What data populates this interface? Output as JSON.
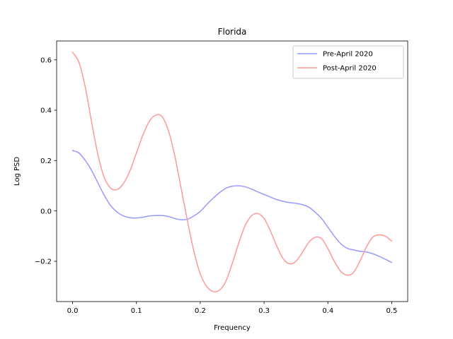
{
  "chart_data": {
    "type": "line",
    "title": "Florida",
    "xlabel": "Frequency",
    "ylabel": "Log PSD",
    "xlim": [
      -0.025,
      0.525
    ],
    "ylim": [
      -0.36,
      0.675
    ],
    "x_ticks": [
      0.0,
      0.1,
      0.2,
      0.3,
      0.4,
      0.5
    ],
    "x_tick_labels": [
      "0.0",
      "0.1",
      "0.2",
      "0.3",
      "0.4",
      "0.5"
    ],
    "y_ticks": [
      -0.2,
      0.0,
      0.2,
      0.4,
      0.6
    ],
    "y_tick_labels": [
      "−0.2",
      "0.0",
      "0.2",
      "0.4",
      "0.6"
    ],
    "grid": false,
    "legend_position": "upper right",
    "series": [
      {
        "name": "Pre-April 2020",
        "color": "#9999ff",
        "x": [
          0.0,
          0.01,
          0.02,
          0.03,
          0.04,
          0.05,
          0.06,
          0.07,
          0.08,
          0.09,
          0.1,
          0.11,
          0.12,
          0.13,
          0.14,
          0.15,
          0.16,
          0.17,
          0.18,
          0.19,
          0.2,
          0.21,
          0.22,
          0.23,
          0.24,
          0.25,
          0.26,
          0.27,
          0.28,
          0.29,
          0.3,
          0.31,
          0.32,
          0.33,
          0.34,
          0.35,
          0.36,
          0.37,
          0.38,
          0.39,
          0.4,
          0.41,
          0.42,
          0.43,
          0.44,
          0.45,
          0.46,
          0.47,
          0.48,
          0.49,
          0.5
        ],
        "y": [
          0.24,
          0.23,
          0.2,
          0.16,
          0.11,
          0.06,
          0.02,
          -0.005,
          -0.02,
          -0.027,
          -0.028,
          -0.025,
          -0.02,
          -0.018,
          -0.018,
          -0.022,
          -0.03,
          -0.035,
          -0.033,
          -0.02,
          -0.002,
          0.025,
          0.05,
          0.072,
          0.09,
          0.098,
          0.1,
          0.096,
          0.087,
          0.076,
          0.065,
          0.055,
          0.045,
          0.038,
          0.033,
          0.03,
          0.025,
          0.015,
          -0.005,
          -0.03,
          -0.065,
          -0.1,
          -0.13,
          -0.148,
          -0.155,
          -0.16,
          -0.163,
          -0.17,
          -0.18,
          -0.192,
          -0.205
        ]
      },
      {
        "name": "Post-April 2020",
        "color": "#ff9999",
        "x": [
          0.0,
          0.01,
          0.02,
          0.03,
          0.04,
          0.05,
          0.06,
          0.07,
          0.08,
          0.09,
          0.1,
          0.11,
          0.12,
          0.13,
          0.14,
          0.15,
          0.16,
          0.17,
          0.18,
          0.19,
          0.2,
          0.21,
          0.22,
          0.23,
          0.24,
          0.25,
          0.26,
          0.27,
          0.28,
          0.29,
          0.3,
          0.31,
          0.32,
          0.33,
          0.34,
          0.35,
          0.36,
          0.37,
          0.38,
          0.39,
          0.4,
          0.41,
          0.42,
          0.43,
          0.44,
          0.45,
          0.46,
          0.47,
          0.48,
          0.49,
          0.5
        ],
        "y": [
          0.63,
          0.59,
          0.49,
          0.35,
          0.22,
          0.13,
          0.09,
          0.085,
          0.11,
          0.16,
          0.23,
          0.3,
          0.355,
          0.38,
          0.375,
          0.32,
          0.22,
          0.09,
          -0.04,
          -0.16,
          -0.25,
          -0.3,
          -0.32,
          -0.315,
          -0.28,
          -0.21,
          -0.13,
          -0.06,
          -0.02,
          -0.01,
          -0.03,
          -0.08,
          -0.14,
          -0.19,
          -0.21,
          -0.2,
          -0.165,
          -0.125,
          -0.105,
          -0.11,
          -0.15,
          -0.2,
          -0.24,
          -0.255,
          -0.245,
          -0.2,
          -0.145,
          -0.105,
          -0.095,
          -0.1,
          -0.12
        ]
      }
    ]
  }
}
